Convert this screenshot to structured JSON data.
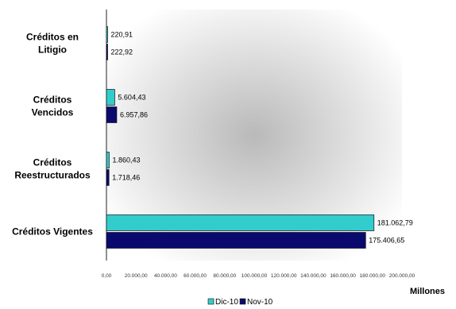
{
  "chart_data": {
    "type": "bar",
    "orientation": "horizontal",
    "categories": [
      "Créditos en\nLitigio",
      "Créditos\nVencidos",
      "Créditos\nReestructurados",
      "Créditos Vigentes"
    ],
    "series": [
      {
        "name": "Dic-10",
        "color": "#33cccc",
        "values": [
          220.91,
          5604.43,
          1860.43,
          181062.79
        ],
        "labels": [
          "220,91",
          "5.604,43",
          "1.860,43",
          "181.062,79"
        ]
      },
      {
        "name": "Nov-10",
        "color": "#0a0a6e",
        "values": [
          222.92,
          6957.86,
          1718.46,
          175406.65
        ],
        "labels": [
          "222,92",
          "6.957,86",
          "1.718,46",
          "175.406,65"
        ]
      }
    ],
    "xlim": [
      0,
      200000
    ],
    "xticks": [
      0,
      20000,
      40000,
      60000,
      80000,
      100000,
      120000,
      140000,
      160000,
      180000,
      200000
    ],
    "xtick_labels": [
      "0,00",
      "20.000,00",
      "40.000,00",
      "60.000,00",
      "80.000,00",
      "100.000,00",
      "120.000,00",
      "140.000,00",
      "160.000,00",
      "180.000,00",
      "200.000,00"
    ],
    "xlabel": "Millones",
    "legend_position": "bottom",
    "background": "radial gradient gray"
  }
}
